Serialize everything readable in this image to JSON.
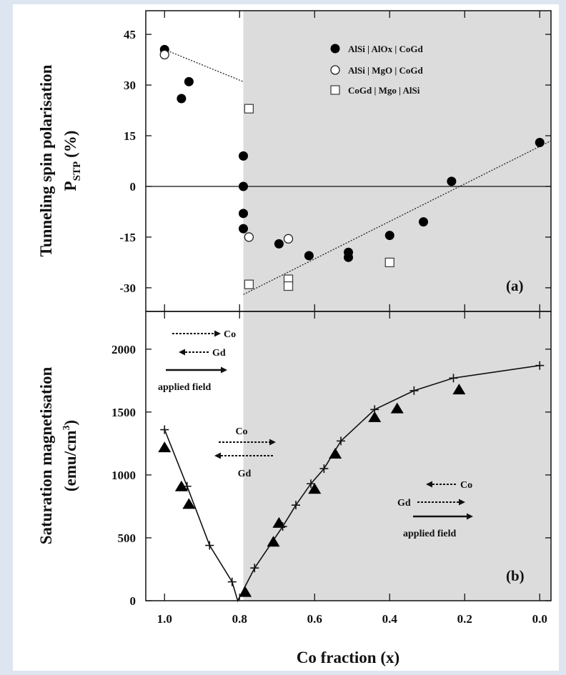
{
  "chart_data": [
    {
      "type": "scatter",
      "panel_label": "(a)",
      "ylabel_line1": "Tunneling spin polarisation",
      "ylabel_main": "P",
      "ylabel_sub": "STP",
      "ylabel_unit": "(%)",
      "xlabel": "Co fraction (x)",
      "xlim": [
        1.05,
        -0.03
      ],
      "ylim": [
        -37,
        52
      ],
      "yticks": [
        "45",
        "30",
        "15",
        "0",
        "-15",
        "-30"
      ],
      "ytick_values": [
        45,
        30,
        15,
        0,
        -15,
        -30
      ],
      "shaded_region": [
        0.79,
        -0.03
      ],
      "zero_line": true,
      "legend_position": "top-right",
      "series": [
        {
          "name": "AlSi | AlOx | CoGd",
          "marker": "filled-circle",
          "points": [
            [
              1.0,
              40.5
            ],
            [
              0.955,
              26
            ],
            [
              0.935,
              31
            ],
            [
              0.79,
              9
            ],
            [
              0.79,
              0
            ],
            [
              0.79,
              -8
            ],
            [
              0.79,
              -12.5
            ],
            [
              0.695,
              -17
            ],
            [
              0.615,
              -20.5
            ],
            [
              0.51,
              -19.5
            ],
            [
              0.51,
              -21
            ],
            [
              0.4,
              -14.5
            ],
            [
              0.31,
              -10.5
            ],
            [
              0.235,
              1.5
            ],
            [
              0.0,
              13
            ]
          ]
        },
        {
          "name": "AlSi | MgO | CoGd",
          "marker": "open-circle",
          "points": [
            [
              1.0,
              39
            ],
            [
              0.775,
              -15
            ],
            [
              0.67,
              -15.5
            ]
          ]
        },
        {
          "name": "CoGd | Mgo | AlSi",
          "marker": "open-square",
          "points": [
            [
              0.775,
              23
            ],
            [
              0.775,
              -29
            ],
            [
              0.67,
              -27.5
            ],
            [
              0.67,
              -29.5
            ],
            [
              0.4,
              -22.5
            ]
          ]
        }
      ],
      "trend_lines": [
        {
          "style": "dotted",
          "points": [
            [
              1.0,
              40.5
            ],
            [
              0.79,
              31
            ]
          ]
        },
        {
          "style": "dotted",
          "points": [
            [
              0.79,
              -32
            ],
            [
              -0.03,
              13.5
            ]
          ]
        }
      ]
    },
    {
      "type": "scatter",
      "panel_label": "(b)",
      "ylabel_line1": "Saturation magnetisation",
      "ylabel_line2": "(emu/cm",
      "ylabel_sup": "3",
      "ylabel_close": ")",
      "xlabel": "Co fraction (x)",
      "xlim": [
        1.05,
        -0.03
      ],
      "ylim": [
        0,
        2300
      ],
      "yticks": [
        "0",
        "500",
        "1000",
        "1500",
        "2000"
      ],
      "ytick_values": [
        0,
        500,
        1000,
        1500,
        2000
      ],
      "xticks": [
        "1.0",
        "0.8",
        "0.6",
        "0.4",
        "0.2",
        "0.0"
      ],
      "xtick_values": [
        1.0,
        0.8,
        0.6,
        0.4,
        0.2,
        0.0
      ],
      "shaded_region": [
        0.79,
        -0.03
      ],
      "series": [
        {
          "marker": "filled-triangle",
          "points": [
            [
              1.0,
              1220
            ],
            [
              0.955,
              910
            ],
            [
              0.935,
              770
            ],
            [
              0.785,
              70
            ],
            [
              0.71,
              470
            ],
            [
              0.695,
              620
            ],
            [
              0.6,
              890
            ],
            [
              0.545,
              1170
            ],
            [
              0.44,
              1460
            ],
            [
              0.38,
              1530
            ],
            [
              0.215,
              1680
            ]
          ]
        },
        {
          "marker": "plus",
          "points": [
            [
              1.0,
              1360
            ],
            [
              0.94,
              910
            ],
            [
              0.88,
              440
            ],
            [
              0.82,
              150
            ],
            [
              0.76,
              260
            ],
            [
              0.685,
              590
            ],
            [
              0.65,
              760
            ],
            [
              0.61,
              930
            ],
            [
              0.575,
              1050
            ],
            [
              0.53,
              1270
            ],
            [
              0.44,
              1520
            ],
            [
              0.335,
              1670
            ],
            [
              0.23,
              1770
            ],
            [
              0.0,
              1870
            ]
          ]
        }
      ],
      "fit_curve": {
        "style": "solid",
        "points": [
          [
            1.0,
            1360
          ],
          [
            0.94,
            910
          ],
          [
            0.88,
            440
          ],
          [
            0.82,
            150
          ],
          [
            0.805,
            0
          ],
          [
            0.76,
            260
          ],
          [
            0.685,
            590
          ],
          [
            0.65,
            760
          ],
          [
            0.61,
            930
          ],
          [
            0.575,
            1050
          ],
          [
            0.53,
            1270
          ],
          [
            0.44,
            1520
          ],
          [
            0.335,
            1670
          ],
          [
            0.23,
            1770
          ],
          [
            0.0,
            1870
          ]
        ]
      },
      "annotations": {
        "left_co": "Co",
        "left_gd": "Gd",
        "left_field": "applied field",
        "mid_co": "Co",
        "mid_gd": "Gd",
        "right_co": "Co",
        "right_gd": "Gd",
        "right_field": "applied field"
      }
    }
  ]
}
